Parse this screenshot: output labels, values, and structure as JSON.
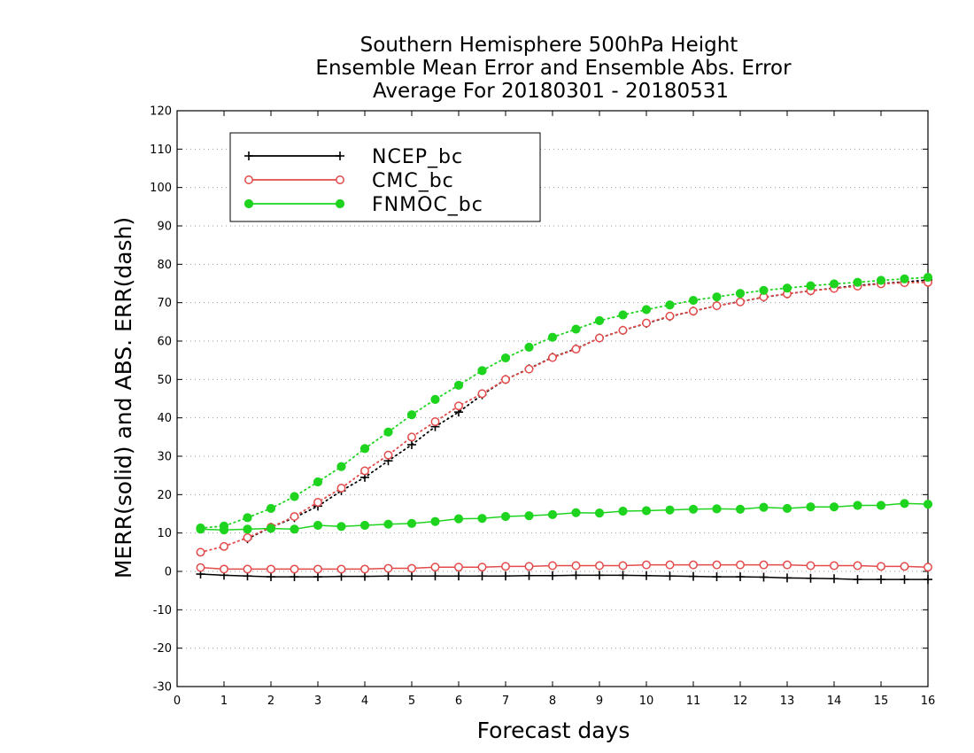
{
  "chart_data": {
    "type": "line",
    "title_lines": [
      "Southern Hemisphere 500hPa Height",
      "Ensemble Mean Error and Ensemble Abs. Error",
      "Average For 20180301 - 20180531"
    ],
    "xlabel": "Forecast days",
    "ylabel": "MERR(solid) and ABS. ERR(dash)",
    "xlim": [
      0,
      16
    ],
    "ylim": [
      -30,
      120
    ],
    "xticks": [
      0,
      1,
      2,
      3,
      4,
      5,
      6,
      7,
      8,
      9,
      10,
      11,
      12,
      13,
      14,
      15,
      16
    ],
    "yticks": [
      -30,
      -20,
      -10,
      0,
      10,
      20,
      30,
      40,
      50,
      60,
      70,
      80,
      90,
      100,
      110,
      120
    ],
    "grid": true,
    "legend_position": "top-left",
    "x": [
      0.5,
      1,
      1.5,
      2,
      2.5,
      3,
      3.5,
      4,
      4.5,
      5,
      5.5,
      6,
      6.5,
      7,
      7.5,
      8,
      8.5,
      9,
      9.5,
      10,
      10.5,
      11,
      11.5,
      12,
      12.5,
      13,
      13.5,
      14,
      14.5,
      15,
      15.5,
      16
    ],
    "series": [
      {
        "name": "NCEP_bc",
        "color": "#000000",
        "marker": "plus",
        "merr": [
          -0.7,
          -1.0,
          -1.2,
          -1.4,
          -1.4,
          -1.4,
          -1.3,
          -1.3,
          -1.2,
          -1.2,
          -1.2,
          -1.2,
          -1.2,
          -1.2,
          -1.1,
          -1.1,
          -1.0,
          -1.0,
          -1.0,
          -1.1,
          -1.2,
          -1.3,
          -1.4,
          -1.4,
          -1.5,
          -1.7,
          -1.8,
          -1.9,
          -2.1,
          -2.1,
          -2.1,
          -2.1
        ],
        "abs_err": [
          null,
          null,
          8.5,
          11.5,
          14.0,
          17.0,
          21.0,
          24.5,
          28.8,
          33.0,
          37.7,
          41.5,
          46.0,
          50.0,
          52.8,
          55.8,
          58.0,
          60.8,
          62.8,
          64.6,
          66.4,
          67.8,
          69.2,
          70.3,
          71.4,
          72.3,
          73.1,
          73.8,
          74.5,
          75.0,
          75.4,
          75.9
        ]
      },
      {
        "name": "CMC_bc",
        "color": "#e34a4a",
        "marker": "open-circle",
        "merr": [
          1.0,
          0.6,
          0.6,
          0.6,
          0.6,
          0.6,
          0.6,
          0.6,
          0.8,
          0.8,
          1.1,
          1.1,
          1.1,
          1.3,
          1.3,
          1.5,
          1.5,
          1.5,
          1.5,
          1.7,
          1.7,
          1.7,
          1.7,
          1.7,
          1.7,
          1.7,
          1.5,
          1.5,
          1.5,
          1.3,
          1.3,
          1.1
        ],
        "abs_err": [
          5.0,
          6.5,
          8.8,
          11.5,
          14.3,
          18.0,
          21.7,
          26.2,
          30.3,
          35.0,
          39.0,
          43.1,
          46.3,
          50.0,
          52.7,
          55.7,
          57.9,
          60.8,
          62.8,
          64.7,
          66.5,
          67.8,
          69.2,
          70.2,
          71.5,
          72.3,
          73.1,
          73.7,
          74.3,
          74.9,
          75.2,
          75.3
        ]
      },
      {
        "name": "FNMOC_bc",
        "color": "#1ed41e",
        "marker": "filled-circle",
        "merr": [
          11.0,
          10.8,
          11.0,
          11.2,
          11.0,
          12.0,
          11.7,
          12.0,
          12.3,
          12.5,
          13.0,
          13.7,
          13.8,
          14.3,
          14.5,
          14.8,
          15.3,
          15.2,
          15.7,
          15.8,
          16.0,
          16.2,
          16.3,
          16.2,
          16.7,
          16.4,
          16.8,
          16.8,
          17.2,
          17.2,
          17.7,
          17.5
        ],
        "abs_err": [
          11.3,
          11.8,
          14.0,
          16.4,
          19.5,
          23.3,
          27.3,
          32.0,
          36.3,
          40.8,
          44.8,
          48.5,
          52.3,
          55.6,
          58.4,
          61.0,
          63.1,
          65.3,
          66.8,
          68.2,
          69.4,
          70.6,
          71.5,
          72.4,
          73.2,
          73.8,
          74.4,
          74.9,
          75.3,
          75.8,
          76.2,
          76.6
        ]
      }
    ]
  }
}
